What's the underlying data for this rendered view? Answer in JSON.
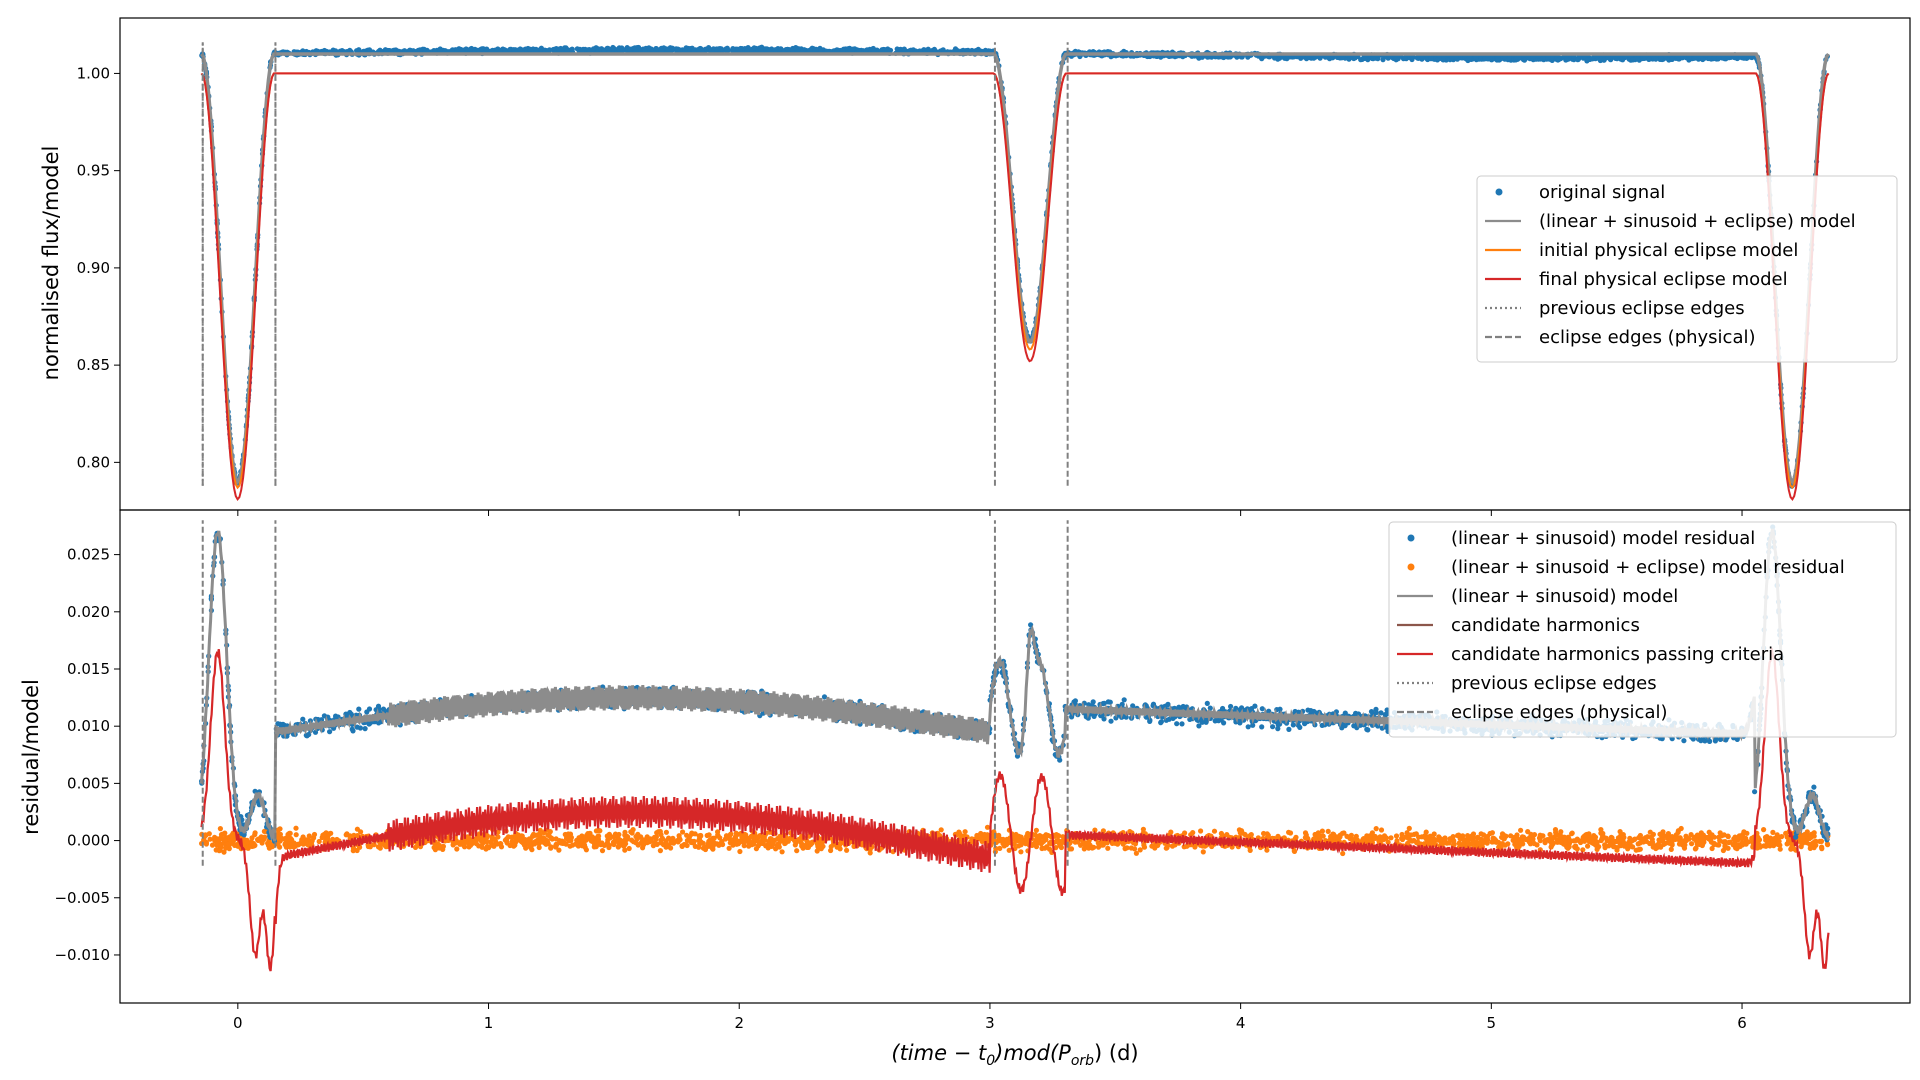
{
  "chart_data": [
    {
      "type": "scatter",
      "panel": "top",
      "ylabel": "normalised flux/model",
      "xlim": [
        -0.47,
        6.67
      ],
      "ylim": [
        0.7755,
        1.0285
      ],
      "x_ticks": [
        0,
        1,
        2,
        3,
        4,
        5,
        6
      ],
      "y_ticks": [
        0.8,
        0.85,
        0.9,
        0.95,
        1.0
      ],
      "y_tick_labels": [
        "0.80",
        "0.85",
        "0.90",
        "0.95",
        "1.00"
      ],
      "legend_position": "center-right",
      "period": 6.2,
      "eclipses": [
        {
          "center": 0.0,
          "half_width": 0.145,
          "depth": 0.22
        },
        {
          "center": 3.16,
          "half_width": 0.145,
          "depth": 0.148
        },
        {
          "center": 6.2,
          "half_width": 0.145,
          "depth": 0.22
        }
      ],
      "series": [
        {
          "name": "original signal",
          "style": "points",
          "color": "#1f77b4",
          "baseline": 1.01,
          "x_range": [
            -0.145,
            6.345
          ]
        },
        {
          "name": "(linear + sinusoid + eclipse) model",
          "style": "line",
          "color": "#8c8c8c",
          "baseline": 1.01
        },
        {
          "name": "initial physical eclipse model",
          "style": "line",
          "color": "#ff7f0e",
          "baseline": 1.0,
          "depths": [
            0.213,
            0.142,
            0.213
          ]
        },
        {
          "name": "final physical eclipse model",
          "style": "line",
          "color": "#d62728",
          "baseline": 1.0,
          "depths": [
            0.219,
            0.148,
            0.219
          ]
        },
        {
          "name": "previous eclipse edges",
          "style": "dotted",
          "color": "#808080",
          "x": [
            -0.14,
            0.15
          ],
          "y_range": [
            0.788,
            1.016
          ]
        },
        {
          "name": "eclipse edges (physical)",
          "style": "dashed",
          "color": "#808080",
          "x": [
            -0.14,
            0.15,
            3.02,
            3.31
          ],
          "y_range": [
            0.788,
            1.016
          ]
        }
      ]
    },
    {
      "type": "scatter",
      "panel": "bottom",
      "xlabel": "(time − t0)mod(Porb) (d)",
      "ylabel": "residual/model",
      "xlim": [
        -0.47,
        6.67
      ],
      "ylim": [
        -0.0142,
        0.0289
      ],
      "x_ticks": [
        0,
        1,
        2,
        3,
        4,
        5,
        6
      ],
      "x_tick_labels": [
        "0",
        "1",
        "2",
        "3",
        "4",
        "5",
        "6"
      ],
      "y_ticks": [
        -0.01,
        -0.005,
        0.0,
        0.005,
        0.01,
        0.015,
        0.02,
        0.025
      ],
      "y_tick_labels": [
        "−0.010",
        "−0.005",
        "0.000",
        "0.005",
        "0.010",
        "0.015",
        "0.020",
        "0.025"
      ],
      "legend_position": "upper-right",
      "series": [
        {
          "name": "(linear + sinusoid) model residual",
          "style": "points",
          "color": "#1f77b4",
          "baseline_min": 0.0095,
          "baseline_max": 0.0125,
          "peak": 0.028
        },
        {
          "name": "(linear + sinusoid + eclipse) model residual",
          "style": "points",
          "color": "#ff7f0e",
          "baseline": 0.0
        },
        {
          "name": "(linear + sinusoid) model",
          "style": "line",
          "color": "#8c8c8c"
        },
        {
          "name": "candidate harmonics",
          "style": "line",
          "color": "#8c564b"
        },
        {
          "name": "candidate harmonics passing criteria",
          "style": "line",
          "color": "#d62728",
          "peak": 0.0162,
          "trough": -0.0115
        },
        {
          "name": "previous eclipse edges",
          "style": "dotted",
          "color": "#808080"
        },
        {
          "name": "eclipse edges (physical)",
          "style": "dashed",
          "color": "#808080",
          "x": [
            -0.14,
            0.15,
            3.02,
            3.31
          ],
          "y_range": [
            -0.0022,
            0.028
          ]
        }
      ]
    }
  ],
  "axis_text": {
    "xlabel_main": "(time − t",
    "xlabel_sub0": "0",
    "xlabel_mid": ")mod(P",
    "xlabel_sub1": "orb",
    "xlabel_end": ") (d)"
  }
}
